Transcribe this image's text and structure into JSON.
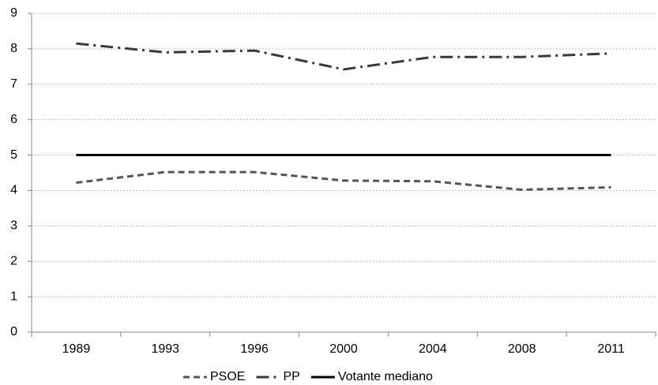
{
  "chart_data": {
    "type": "line",
    "categories": [
      "1989",
      "1993",
      "1996",
      "2000",
      "2004",
      "2008",
      "2011"
    ],
    "series": [
      {
        "name": "PSOE",
        "color": "#555555",
        "dash": "dashed",
        "values": [
          4.22,
          4.52,
          4.52,
          4.28,
          4.26,
          4.02,
          4.09
        ]
      },
      {
        "name": "PP",
        "color": "#3a3a3a",
        "dash": "dashdot",
        "values": [
          8.15,
          7.9,
          7.95,
          7.42,
          7.77,
          7.77,
          7.87
        ]
      },
      {
        "name": "Votante mediano",
        "color": "#000000",
        "dash": "solid",
        "values": [
          5,
          5,
          5,
          5,
          5,
          5,
          5
        ]
      }
    ],
    "ylim": [
      0,
      9
    ],
    "yticks": [
      0,
      1,
      2,
      3,
      4,
      5,
      6,
      7,
      8,
      9
    ],
    "grid": true,
    "legend": "bottom"
  }
}
